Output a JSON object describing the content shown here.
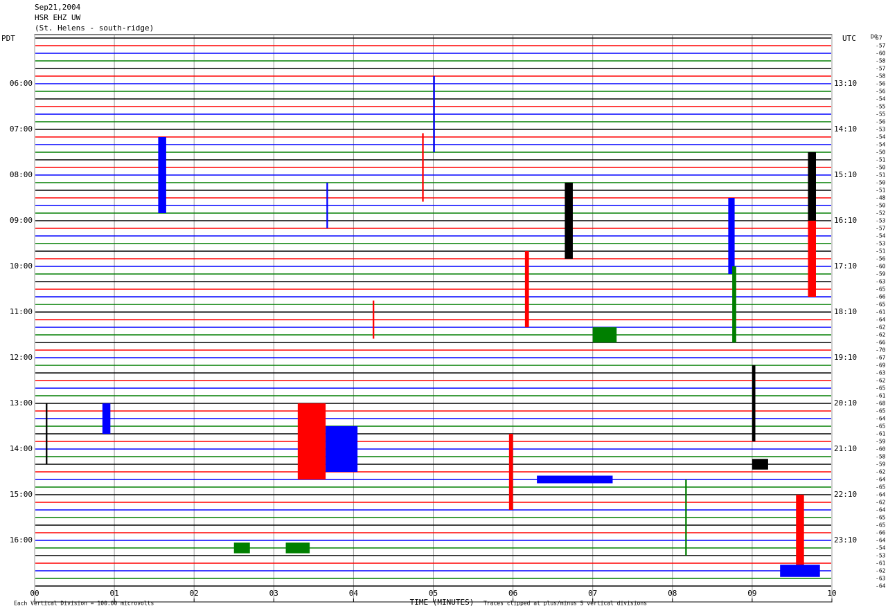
{
  "chart_data": {
    "type": "helicorder",
    "date": "Sep21,2004",
    "station": "HSR EHZ UW",
    "location": "(St. Helens - south-ridge)",
    "left_zone": "PDT",
    "right_zone": "UTC",
    "dc_header": "DC",
    "xlabel": "TIME (MINUTES)",
    "scale_note": "Each Vertical Division =  100.00 microvolts",
    "clip_note": "Traces clipped at plus/minus 5 vertical divisions",
    "xlim": [
      0,
      10
    ],
    "xticks": [
      {
        "value": 0,
        "label": "00"
      },
      {
        "value": 1,
        "label": "01"
      },
      {
        "value": 2,
        "label": "02"
      },
      {
        "value": 3,
        "label": "03"
      },
      {
        "value": 4,
        "label": "04"
      },
      {
        "value": 5,
        "label": "05"
      },
      {
        "value": 6,
        "label": "06"
      },
      {
        "value": 7,
        "label": "07"
      },
      {
        "value": 8,
        "label": "08"
      },
      {
        "value": 9,
        "label": "09"
      },
      {
        "value": 10,
        "label": "10"
      }
    ],
    "grid": true,
    "trace_colors": [
      "#000000",
      "#ff0000",
      "#0000ff",
      "#007f00"
    ],
    "pdt_labels": [
      "06:00",
      "07:00",
      "08:00",
      "09:00",
      "10:00",
      "11:00",
      "12:00",
      "13:00",
      "14:00",
      "15:00",
      "16:00"
    ],
    "utc_labels": [
      "13:10",
      "14:10",
      "15:10",
      "16:10",
      "17:10",
      "18:10",
      "19:10",
      "20:10",
      "21:10",
      "22:10",
      "23:10"
    ],
    "dc_values": [
      57,
      -57,
      -60,
      -58,
      -57,
      -58,
      -56,
      -56,
      -54,
      -55,
      -55,
      -56,
      -53,
      -54,
      -54,
      -50,
      -51,
      -50,
      -51,
      -50,
      -51,
      -48,
      -50,
      -52,
      -53,
      -57,
      -54,
      -53,
      -51,
      -56,
      -60,
      -59,
      -63,
      -65,
      -66,
      -65,
      -61,
      -64,
      -62,
      -62,
      -66,
      -70,
      -67,
      -69,
      -63,
      -62,
      -65,
      -61,
      -68,
      -65,
      -64,
      -65,
      -61,
      -59,
      -60,
      -58,
      -59,
      -62,
      -64,
      -65,
      -64,
      -62,
      -64,
      -65,
      -65,
      -66,
      -64,
      -54,
      -53,
      -61,
      -62,
      -63,
      -64
    ],
    "events": [
      {
        "trace": 18,
        "start": 1.55,
        "end": 1.65,
        "amp": 5
      },
      {
        "trace": 10,
        "start": 5.0,
        "end": 5.02,
        "amp": 5
      },
      {
        "trace": 17,
        "start": 4.86,
        "end": 4.88,
        "amp": 4.5
      },
      {
        "trace": 24,
        "start": 6.65,
        "end": 6.75,
        "amp": 5
      },
      {
        "trace": 20,
        "start": 9.7,
        "end": 9.8,
        "amp": 5
      },
      {
        "trace": 29,
        "start": 9.7,
        "end": 9.8,
        "amp": 5
      },
      {
        "trace": 26,
        "start": 8.7,
        "end": 8.78,
        "amp": 5
      },
      {
        "trace": 22,
        "start": 3.66,
        "end": 3.68,
        "amp": 3
      },
      {
        "trace": 33,
        "start": 6.15,
        "end": 6.2,
        "amp": 5
      },
      {
        "trace": 35,
        "start": 8.75,
        "end": 8.8,
        "amp": 5
      },
      {
        "trace": 37,
        "start": 4.24,
        "end": 4.26,
        "amp": 2.5
      },
      {
        "trace": 39,
        "start": 7.0,
        "end": 7.3,
        "amp": 1
      },
      {
        "trace": 48,
        "start": 9.0,
        "end": 9.04,
        "amp": 5
      },
      {
        "trace": 52,
        "start": 0.14,
        "end": 0.16,
        "amp": 4
      },
      {
        "trace": 50,
        "start": 0.85,
        "end": 0.95,
        "amp": 2
      },
      {
        "trace": 53,
        "start": 3.3,
        "end": 3.65,
        "amp": 5
      },
      {
        "trace": 54,
        "start": 3.65,
        "end": 4.05,
        "amp": 3
      },
      {
        "trace": 57,
        "start": 5.95,
        "end": 6.0,
        "amp": 5
      },
      {
        "trace": 58,
        "start": 6.3,
        "end": 7.25,
        "amp": 0.5
      },
      {
        "trace": 56,
        "start": 9.0,
        "end": 9.2,
        "amp": 0.7
      },
      {
        "trace": 63,
        "start": 8.16,
        "end": 8.18,
        "amp": 5
      },
      {
        "trace": 65,
        "start": 9.55,
        "end": 9.65,
        "amp": 5
      },
      {
        "trace": 67,
        "start": 2.5,
        "end": 2.7,
        "amp": 0.7
      },
      {
        "trace": 67,
        "start": 3.15,
        "end": 3.45,
        "amp": 0.7
      },
      {
        "trace": 70,
        "start": 9.35,
        "end": 9.85,
        "amp": 0.8
      }
    ]
  }
}
